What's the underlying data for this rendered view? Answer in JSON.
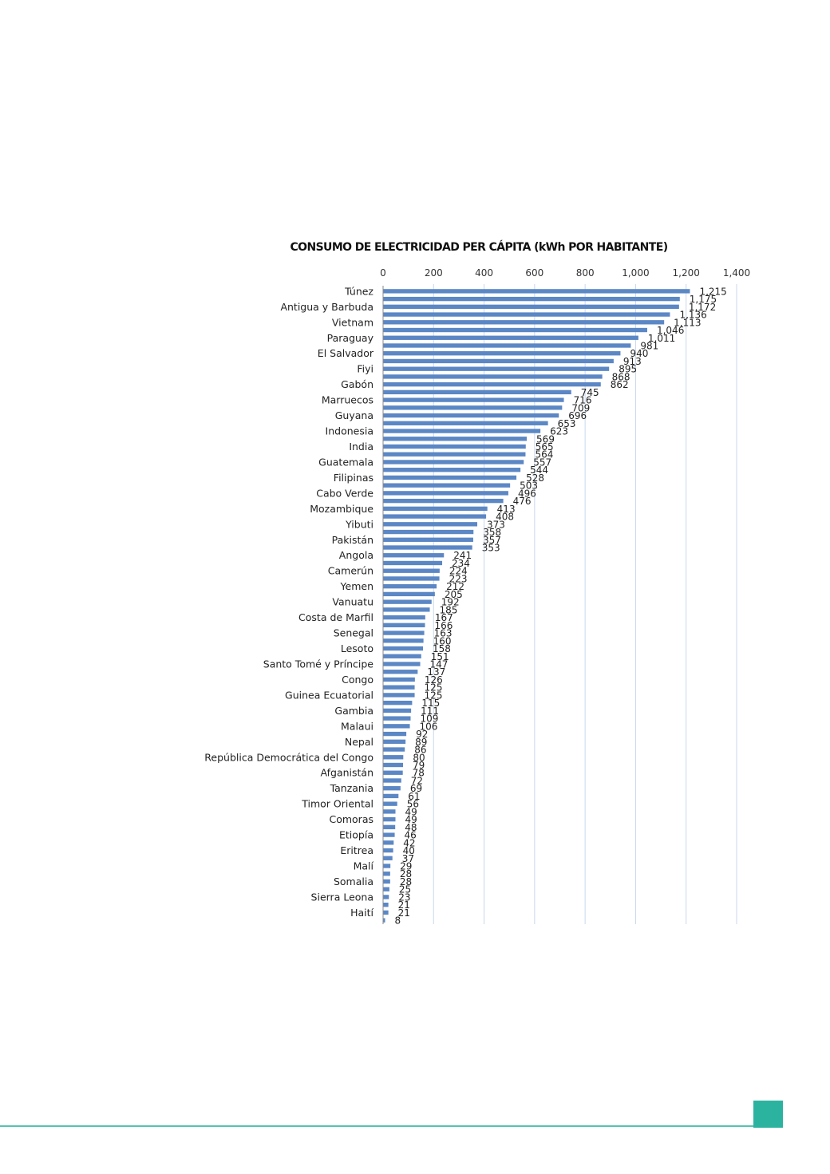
{
  "chart_data": {
    "type": "bar",
    "orientation": "horizontal",
    "title": "CONSUMO DE ELECTRICIDAD PER CÁPITA (kWh POR HABITANTE)",
    "xlabel": "",
    "ylabel": "",
    "xlim": [
      0,
      1400
    ],
    "x_ticks": [
      "0",
      "200",
      "400",
      "600",
      "800",
      "1,000",
      "1,200",
      "1,400"
    ],
    "grid": true,
    "bar_color": "#5b87c5",
    "categories": [
      "Túnez",
      "",
      "Antigua y Barbuda",
      "",
      "Vietnam",
      "",
      "Paraguay",
      "",
      "El Salvador",
      "",
      "Fiyi",
      "",
      "Gabón",
      "",
      "Marruecos",
      "",
      "Guyana",
      "",
      "Indonesia",
      "",
      "India",
      "",
      "Guatemala",
      "",
      "Filipinas",
      "",
      "Cabo Verde",
      "",
      "Mozambique",
      "",
      "Yibuti",
      "",
      "Pakistán",
      "",
      "Angola",
      "",
      "Camerún",
      "",
      "Yemen",
      "",
      "Vanuatu",
      "",
      "Costa de Marfil",
      "",
      "Senegal",
      "",
      "Lesoto",
      "",
      "Santo Tomé y Príncipe",
      "",
      "Congo",
      "",
      "Guinea Ecuatorial",
      "",
      "Gambia",
      "",
      "Malaui",
      "",
      "Nepal",
      "",
      "República Democrática del Congo",
      "",
      "Afganistán",
      "",
      "Tanzania",
      "",
      "Timor Oriental",
      "",
      "Comoras",
      "",
      "Etiopía",
      "",
      "Eritrea",
      "",
      "Malí",
      "",
      "Somalia",
      "",
      "Sierra Leona",
      "",
      "Haití",
      ""
    ],
    "values": [
      1215,
      1175,
      1172,
      1136,
      1113,
      1046,
      1011,
      981,
      940,
      913,
      895,
      868,
      862,
      745,
      716,
      709,
      696,
      653,
      623,
      569,
      565,
      564,
      557,
      544,
      528,
      503,
      496,
      476,
      413,
      408,
      373,
      358,
      357,
      353,
      241,
      234,
      224,
      223,
      212,
      205,
      192,
      185,
      167,
      166,
      163,
      160,
      158,
      151,
      147,
      137,
      126,
      125,
      125,
      115,
      111,
      109,
      106,
      92,
      89,
      86,
      80,
      79,
      78,
      72,
      69,
      61,
      56,
      49,
      49,
      48,
      46,
      42,
      40,
      37,
      29,
      28,
      28,
      25,
      23,
      21,
      21,
      8
    ],
    "value_labels": [
      "1,215",
      "1,175",
      "1,172",
      "1,136",
      "1,113",
      "1,046",
      "1,011",
      "981",
      "940",
      "913",
      "895",
      "868",
      "862",
      "745",
      "716",
      "709",
      "696",
      "653",
      "623",
      "569",
      "565",
      "564",
      "557",
      "544",
      "528",
      "503",
      "496",
      "476",
      "413",
      "408",
      "373",
      "358",
      "357",
      "353",
      "241",
      "234",
      "224",
      "223",
      "212",
      "205",
      "192",
      "185",
      "167",
      "166",
      "163",
      "160",
      "158",
      "151",
      "147",
      "137",
      "126",
      "125",
      "125",
      "115",
      "111",
      "109",
      "106",
      "92",
      "89",
      "86",
      "80",
      "79",
      "78",
      "72",
      "69",
      "61",
      "56",
      "49",
      "49",
      "48",
      "46",
      "42",
      "40",
      "37",
      "29",
      "28",
      "28",
      "25",
      "23",
      "21",
      "21",
      "8"
    ]
  },
  "colors": {
    "bar": "#5b87c5",
    "grid": "#c9d7ee",
    "accent": "#2bb3a0"
  }
}
